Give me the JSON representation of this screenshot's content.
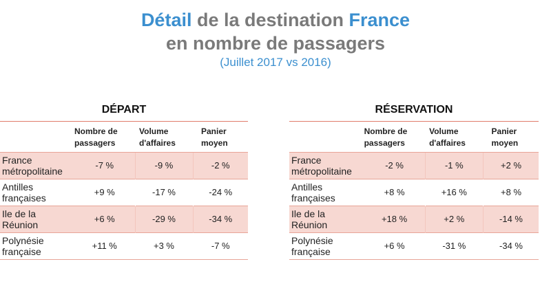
{
  "title": {
    "word1": "Détail",
    "mid": " de la destination ",
    "word2": "France",
    "line2": "en nombre de passagers",
    "subtitle": "(Juillet 2017 vs 2016)"
  },
  "colors": {
    "accent_blue": "#3b8fcf",
    "title_gray": "#7a7a7a",
    "row_shade": "#f7d8d2",
    "rule": "#e07b6a"
  },
  "depart": {
    "heading": "DÉPART",
    "columns": [
      {
        "line1": "Nombre de",
        "line2": "passagers"
      },
      {
        "line1": "Volume",
        "line2": "d'affaires"
      },
      {
        "line1": "Panier",
        "line2": "moyen"
      }
    ],
    "rows": [
      {
        "name1": "France",
        "name2": "métropolitaine",
        "values": [
          "-7 %",
          "-9 %",
          "-2 %"
        ]
      },
      {
        "name1": "Antilles",
        "name2": "françaises",
        "values": [
          "+9 %",
          "-17 %",
          "-24 %"
        ]
      },
      {
        "name1": "Ile de la",
        "name2": "Réunion",
        "values": [
          "+6 %",
          "-29 %",
          "-34 %"
        ]
      },
      {
        "name1": "Polynésie",
        "name2": "française",
        "values": [
          "+11 %",
          "+3 %",
          "-7 %"
        ]
      }
    ]
  },
  "reservation": {
    "heading": "RÉSERVATION",
    "columns": [
      {
        "line1": "Nombre de",
        "line2": "passagers"
      },
      {
        "line1": "Volume",
        "line2": "d'affaires"
      },
      {
        "line1": "Panier",
        "line2": "moyen"
      }
    ],
    "rows": [
      {
        "name1": "France",
        "name2": "métropolitaine",
        "values": [
          "-2 %",
          "-1 %",
          "+2 %"
        ]
      },
      {
        "name1": "Antilles",
        "name2": "françaises",
        "values": [
          "+8 %",
          "+16 %",
          "+8 %"
        ]
      },
      {
        "name1": "Ile de la",
        "name2": "Réunion",
        "values": [
          "+18 %",
          "+2 %",
          "-14 %"
        ]
      },
      {
        "name1": "Polynésie",
        "name2": "française",
        "values": [
          "+6 %",
          "-31 %",
          "-34 %"
        ]
      }
    ]
  }
}
